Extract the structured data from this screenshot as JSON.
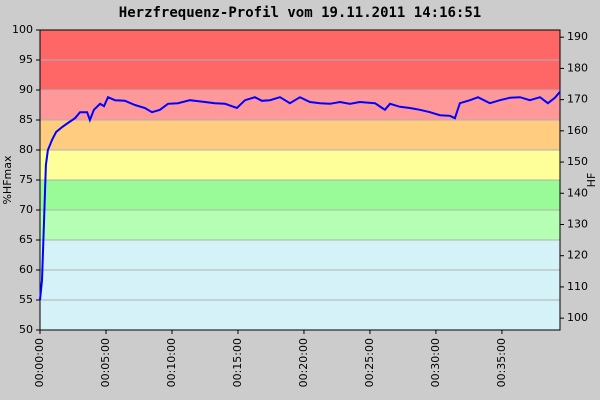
{
  "chart_data": {
    "type": "line",
    "title": "Herzfrequenz-Profil vom 19.11.2011 14:16:51",
    "ylabel": "%HFmax",
    "y2label": "HF",
    "x": [
      0,
      9,
      18,
      27,
      36,
      55,
      73,
      100,
      127,
      159,
      182,
      214,
      227,
      245,
      273,
      291,
      309,
      341,
      386,
      432,
      477,
      509,
      545,
      582,
      627,
      682,
      750,
      795,
      841,
      895,
      932,
      977,
      1009,
      1045,
      1091,
      1136,
      1182,
      1227,
      1273,
      1318,
      1364,
      1409,
      1454,
      1523,
      1568,
      1591,
      1636,
      1682,
      1727,
      1773,
      1818,
      1864,
      1886,
      1909,
      1955,
      1991,
      2045,
      2091,
      2136,
      2182,
      2227,
      2273,
      2309,
      2341,
      2364
    ],
    "series": [
      {
        "color": "#0000ff",
        "values": [
          55,
          58.3,
          68,
          77.5,
          80,
          81.7,
          83,
          83.8,
          84.5,
          85.3,
          86.3,
          86.3,
          85,
          86.7,
          87.7,
          87.3,
          88.8,
          88.3,
          88.2,
          87.5,
          87,
          86.3,
          86.7,
          87.7,
          87.8,
          88.3,
          88,
          87.8,
          87.7,
          87,
          88.3,
          88.8,
          88.2,
          88.3,
          88.8,
          87.8,
          88.8,
          88,
          87.8,
          87.7,
          88,
          87.7,
          88,
          87.8,
          86.7,
          87.7,
          87.2,
          87,
          86.7,
          86.3,
          85.8,
          85.7,
          85.3,
          87.8,
          88.3,
          88.8,
          87.8,
          88.3,
          88.7,
          88.8,
          88.3,
          88.8,
          87.8,
          88.7,
          89.7
        ]
      }
    ],
    "xlim": [
      0,
      2364
    ],
    "xticks": [
      {
        "value": 0,
        "label": "00:00:00"
      },
      {
        "value": 300,
        "label": "00:05:00"
      },
      {
        "value": 600,
        "label": "00:10:00"
      },
      {
        "value": 900,
        "label": "00:15:00"
      },
      {
        "value": 1200,
        "label": "00:20:00"
      },
      {
        "value": 1500,
        "label": "00:25:00"
      },
      {
        "value": 1800,
        "label": "00:30:00"
      },
      {
        "value": 2100,
        "label": "00:35:00"
      }
    ],
    "ylim": [
      50,
      100
    ],
    "yticks": [
      50,
      55,
      60,
      65,
      70,
      75,
      80,
      85,
      90,
      95,
      100
    ],
    "y2lim": [
      96.2,
      192.3
    ],
    "y2ticks": [
      100,
      110,
      120,
      130,
      140,
      150,
      160,
      170,
      180,
      190
    ],
    "zones": [
      {
        "from": 50,
        "to": 65,
        "color": "#d4f2f8"
      },
      {
        "from": 65,
        "to": 70,
        "color": "#b4ffb4"
      },
      {
        "from": 70,
        "to": 75,
        "color": "#98fb98"
      },
      {
        "from": 75,
        "to": 80,
        "color": "#ffff99"
      },
      {
        "from": 80,
        "to": 85,
        "color": "#ffcc80"
      },
      {
        "from": 85,
        "to": 90,
        "color": "#ff9999"
      },
      {
        "from": 90,
        "to": 100,
        "color": "#ff6666"
      }
    ],
    "grid": true
  }
}
